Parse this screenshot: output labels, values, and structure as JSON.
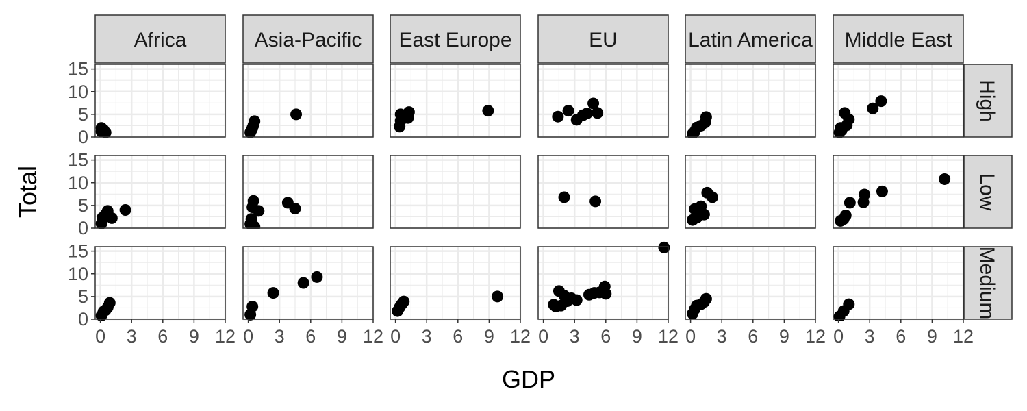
{
  "chart_data": {
    "type": "scatter",
    "xlabel": "GDP",
    "ylabel": "Total",
    "xlim": [
      -0.5,
      12
    ],
    "ylim": [
      0,
      16
    ],
    "x_ticks": [
      0,
      3,
      6,
      9,
      12
    ],
    "x_tick_labels": [
      "0",
      "3",
      "6",
      "9",
      "12"
    ],
    "y_ticks": [
      0,
      5,
      10,
      15
    ],
    "y_tick_labels": [
      "0",
      "5",
      "10",
      "15"
    ],
    "grid": true,
    "legend": "none",
    "column_facets": [
      "Africa",
      "Asia-Pacific",
      "East Europe",
      "EU",
      "Latin America",
      "Middle East"
    ],
    "row_facets": [
      "High",
      "Low",
      "Medium"
    ],
    "panels": [
      {
        "col": "Africa",
        "row": "High",
        "points": [
          [
            0.1,
            1.2
          ],
          [
            0.1,
            2.0
          ],
          [
            0.3,
            1.6
          ],
          [
            0.5,
            1.0
          ]
        ]
      },
      {
        "col": "Asia-Pacific",
        "row": "High",
        "points": [
          [
            0.2,
            1.0
          ],
          [
            0.3,
            1.5
          ],
          [
            0.4,
            2.0
          ],
          [
            0.5,
            2.6
          ],
          [
            0.6,
            3.5
          ],
          [
            4.6,
            5.0
          ]
        ]
      },
      {
        "col": "East Europe",
        "row": "High",
        "points": [
          [
            0.4,
            2.3
          ],
          [
            0.5,
            3.6
          ],
          [
            0.5,
            5.0
          ],
          [
            1.2,
            4.2
          ],
          [
            1.3,
            5.5
          ],
          [
            8.9,
            5.8
          ]
        ]
      },
      {
        "col": "EU",
        "row": "High",
        "points": [
          [
            1.4,
            4.5
          ],
          [
            2.4,
            5.8
          ],
          [
            3.2,
            3.8
          ],
          [
            3.8,
            4.8
          ],
          [
            4.2,
            5.2
          ],
          [
            4.8,
            7.4
          ],
          [
            5.2,
            5.3
          ]
        ]
      },
      {
        "col": "Latin America",
        "row": "High",
        "points": [
          [
            0.2,
            0.7
          ],
          [
            0.4,
            1.2
          ],
          [
            0.6,
            2.1
          ],
          [
            1.0,
            2.5
          ],
          [
            1.4,
            3.2
          ],
          [
            1.5,
            4.4
          ]
        ]
      },
      {
        "col": "Middle East",
        "row": "High",
        "points": [
          [
            0.1,
            1.0
          ],
          [
            0.2,
            2.0
          ],
          [
            0.3,
            1.5
          ],
          [
            0.6,
            5.3
          ],
          [
            0.8,
            2.6
          ],
          [
            1.0,
            3.9
          ],
          [
            3.3,
            6.3
          ],
          [
            4.1,
            7.9
          ]
        ]
      },
      {
        "col": "Africa",
        "row": "Low",
        "points": [
          [
            0.1,
            1.0
          ],
          [
            0.2,
            2.3
          ],
          [
            0.5,
            3.0
          ],
          [
            0.7,
            3.8
          ],
          [
            1.1,
            2.2
          ],
          [
            2.4,
            4.0
          ]
        ]
      },
      {
        "col": "Asia-Pacific",
        "row": "Low",
        "points": [
          [
            0.2,
            0.9
          ],
          [
            0.3,
            2.0
          ],
          [
            0.4,
            4.6
          ],
          [
            0.5,
            6.0
          ],
          [
            0.6,
            0.3
          ],
          [
            1.0,
            3.8
          ],
          [
            3.8,
            5.6
          ],
          [
            4.5,
            4.3
          ]
        ]
      },
      {
        "col": "EU",
        "row": "Low",
        "points": [
          [
            2.0,
            6.8
          ],
          [
            5.0,
            5.9
          ]
        ]
      },
      {
        "col": "Latin America",
        "row": "Low",
        "points": [
          [
            0.2,
            1.8
          ],
          [
            0.4,
            4.2
          ],
          [
            0.6,
            2.3
          ],
          [
            0.8,
            4.0
          ],
          [
            1.0,
            4.8
          ],
          [
            1.3,
            3.0
          ],
          [
            1.6,
            7.8
          ],
          [
            2.1,
            6.8
          ]
        ]
      },
      {
        "col": "Middle East",
        "row": "Low",
        "points": [
          [
            0.2,
            1.6
          ],
          [
            0.5,
            2.0
          ],
          [
            0.7,
            2.8
          ],
          [
            1.1,
            5.6
          ],
          [
            2.4,
            5.7
          ],
          [
            2.5,
            7.4
          ],
          [
            4.2,
            8.1
          ],
          [
            10.2,
            10.8
          ]
        ]
      },
      {
        "col": "Africa",
        "row": "Medium",
        "points": [
          [
            0.1,
            0.8
          ],
          [
            0.3,
            1.7
          ],
          [
            0.5,
            2.0
          ],
          [
            0.7,
            2.6
          ],
          [
            0.9,
            3.6
          ]
        ]
      },
      {
        "col": "Asia-Pacific",
        "row": "Medium",
        "points": [
          [
            0.2,
            1.0
          ],
          [
            0.4,
            2.8
          ],
          [
            2.4,
            5.8
          ],
          [
            5.3,
            8.0
          ],
          [
            6.6,
            9.3
          ]
        ]
      },
      {
        "col": "East Europe",
        "row": "Medium",
        "points": [
          [
            0.2,
            1.8
          ],
          [
            0.4,
            2.6
          ],
          [
            0.6,
            3.3
          ],
          [
            0.8,
            3.9
          ],
          [
            9.8,
            5.0
          ]
        ]
      },
      {
        "col": "EU",
        "row": "Medium",
        "points": [
          [
            1.0,
            3.2
          ],
          [
            1.2,
            2.8
          ],
          [
            1.5,
            6.2
          ],
          [
            1.7,
            3.0
          ],
          [
            2.0,
            5.2
          ],
          [
            2.3,
            4.0
          ],
          [
            2.7,
            4.6
          ],
          [
            3.2,
            4.2
          ],
          [
            4.4,
            5.4
          ],
          [
            4.9,
            5.8
          ],
          [
            5.4,
            5.9
          ],
          [
            5.9,
            7.2
          ],
          [
            6.0,
            5.6
          ],
          [
            11.6,
            15.8
          ]
        ]
      },
      {
        "col": "Latin America",
        "row": "Medium",
        "points": [
          [
            0.2,
            1.2
          ],
          [
            0.4,
            2.2
          ],
          [
            0.6,
            3.0
          ],
          [
            1.0,
            3.3
          ],
          [
            1.3,
            3.8
          ],
          [
            1.5,
            4.5
          ]
        ]
      },
      {
        "col": "Middle East",
        "row": "Medium",
        "points": [
          [
            0.1,
            0.6
          ],
          [
            0.5,
            1.8
          ],
          [
            1.0,
            3.3
          ]
        ]
      }
    ]
  }
}
